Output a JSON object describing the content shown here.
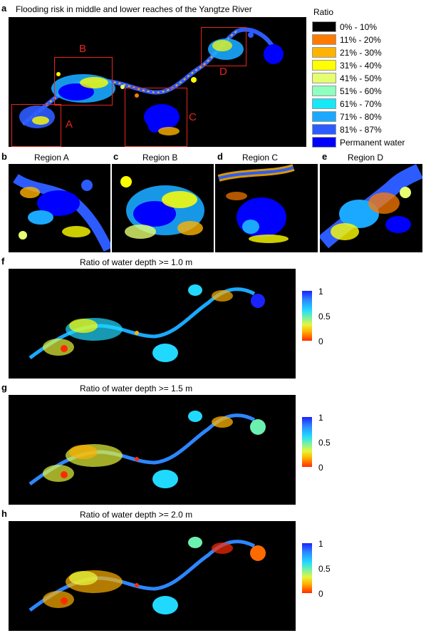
{
  "panel_a": {
    "label": "a",
    "title": "Flooding risk in middle and lower reaches of the Yangtze River",
    "regions": [
      {
        "id": "A",
        "label": "A"
      },
      {
        "id": "B",
        "label": "B"
      },
      {
        "id": "C",
        "label": "C"
      },
      {
        "id": "D",
        "label": "D"
      }
    ]
  },
  "legend": {
    "title": "Ratio",
    "items": [
      {
        "label": "0% - 10%",
        "color": "#000000"
      },
      {
        "label": "11% - 20%",
        "color": "#ff7b00"
      },
      {
        "label": "21% - 30%",
        "color": "#ffb300"
      },
      {
        "label": "31% - 40%",
        "color": "#ffff00"
      },
      {
        "label": "41% - 50%",
        "color": "#e6ff70"
      },
      {
        "label": "51% - 60%",
        "color": "#8fffc0"
      },
      {
        "label": "61% - 70%",
        "color": "#16e8f5"
      },
      {
        "label": "71% - 80%",
        "color": "#1aa9ff"
      },
      {
        "label": "81% - 87%",
        "color": "#2c5cff"
      },
      {
        "label": "Permanent water",
        "color": "#0000ff"
      }
    ]
  },
  "subpanels": [
    {
      "label": "b",
      "title": "Region A"
    },
    {
      "label": "c",
      "title": "Region B"
    },
    {
      "label": "d",
      "title": "Region C"
    },
    {
      "label": "e",
      "title": "Region D"
    }
  ],
  "depth_maps": [
    {
      "label": "f",
      "title": "Ratio of water depth >= 1.0 m"
    },
    {
      "label": "g",
      "title": "Ratio of water depth >= 1.5 m"
    },
    {
      "label": "h",
      "title": "Ratio of water depth >= 2.0 m"
    }
  ],
  "colorbar": {
    "ticks": [
      "1",
      "0.5",
      "0"
    ],
    "colors": [
      "#1a23ff",
      "#21d9ff",
      "#e7f53a",
      "#ff2b00"
    ]
  }
}
